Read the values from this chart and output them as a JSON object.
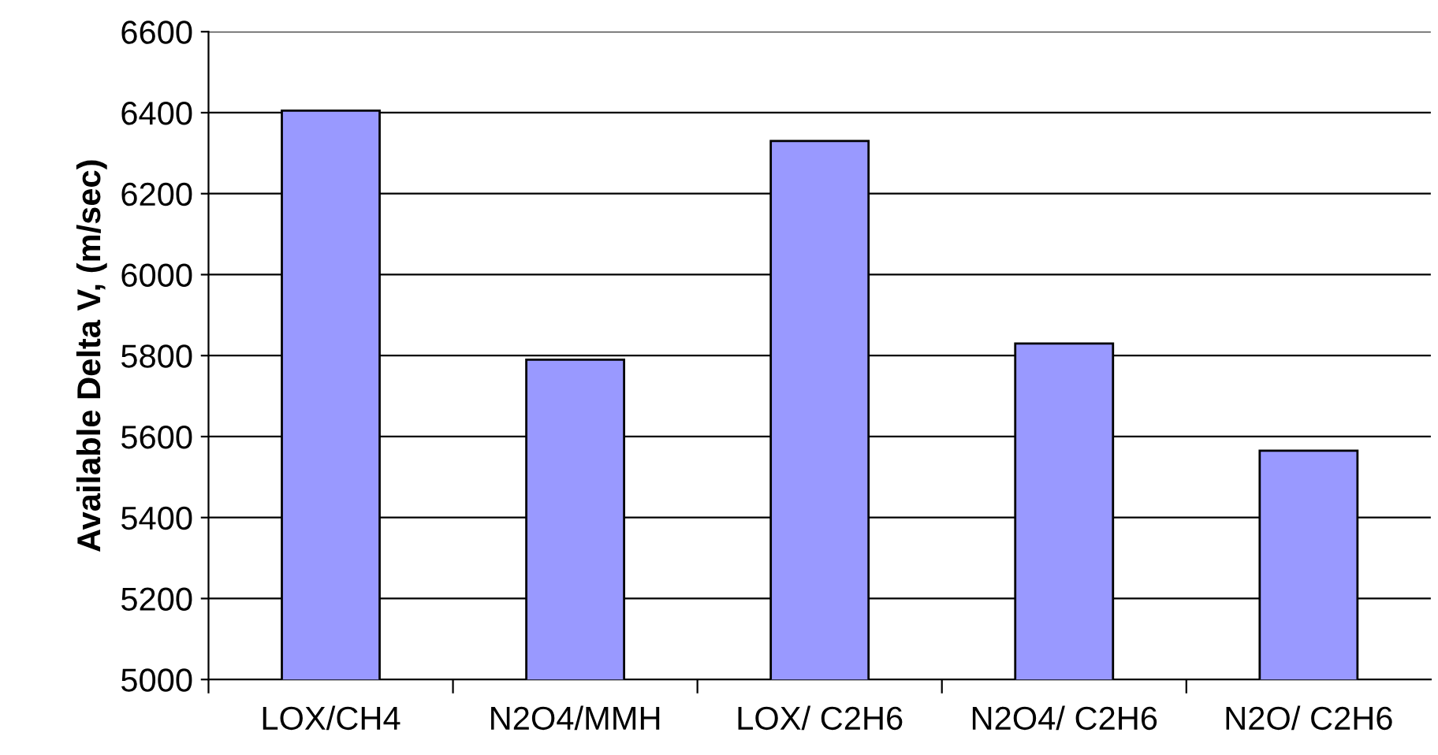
{
  "chart_data": {
    "type": "bar",
    "ylabel": "Available Delta V, (m/sec)",
    "categories": [
      "LOX/CH4",
      "N2O4/MMH",
      "LOX/ C2H6",
      "N2O4/ C2H6",
      "N2O/ C2H6"
    ],
    "values": [
      6405,
      5790,
      6330,
      5830,
      5565
    ],
    "color": "#9999ff",
    "ylim": [
      5000,
      6600
    ],
    "yticks": [
      5000,
      5200,
      5400,
      5600,
      5800,
      6000,
      6200,
      6400,
      6600
    ],
    "grid": "y"
  }
}
